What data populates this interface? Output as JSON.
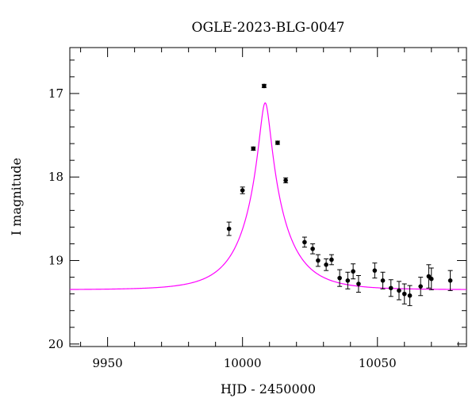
{
  "chart_data": {
    "type": "scatter",
    "title": "OGLE-2023-BLG-0047",
    "xlabel": "HJD - 2450000",
    "ylabel": "I magnitude",
    "xlim": [
      9936,
      10083
    ],
    "ylim": [
      20.03,
      16.45
    ],
    "y_inverted": true,
    "x_major_ticks": [
      9950,
      10000,
      10050
    ],
    "x_tick_labels": [
      "9950",
      "10000",
      "10050"
    ],
    "x_minor_step": 10,
    "y_major_ticks": [
      17,
      18,
      19,
      20
    ],
    "y_tick_labels": [
      "17",
      "18",
      "19",
      "20"
    ],
    "y_minor_step": 0.2,
    "grid": false,
    "points": [
      {
        "x": 9995.0,
        "y": 18.62,
        "err": 0.08
      },
      {
        "x": 10000.0,
        "y": 18.16,
        "err": 0.04
      },
      {
        "x": 10004.0,
        "y": 17.66,
        "err": 0.02
      },
      {
        "x": 10008.0,
        "y": 16.91,
        "err": 0.02
      },
      {
        "x": 10013.0,
        "y": 17.59,
        "err": 0.02
      },
      {
        "x": 10016.0,
        "y": 18.04,
        "err": 0.03
      },
      {
        "x": 10023.0,
        "y": 18.78,
        "err": 0.06
      },
      {
        "x": 10026.0,
        "y": 18.86,
        "err": 0.06
      },
      {
        "x": 10028.0,
        "y": 19.0,
        "err": 0.07
      },
      {
        "x": 10031.0,
        "y": 19.05,
        "err": 0.07
      },
      {
        "x": 10033.0,
        "y": 18.99,
        "err": 0.06
      },
      {
        "x": 10036.0,
        "y": 19.21,
        "err": 0.1
      },
      {
        "x": 10039.0,
        "y": 19.24,
        "err": 0.1
      },
      {
        "x": 10041.0,
        "y": 19.13,
        "err": 0.09
      },
      {
        "x": 10043.0,
        "y": 19.28,
        "err": 0.1
      },
      {
        "x": 10049.0,
        "y": 19.12,
        "err": 0.09
      },
      {
        "x": 10052.0,
        "y": 19.24,
        "err": 0.1
      },
      {
        "x": 10055.0,
        "y": 19.33,
        "err": 0.1
      },
      {
        "x": 10058.0,
        "y": 19.36,
        "err": 0.11
      },
      {
        "x": 10060.0,
        "y": 19.4,
        "err": 0.12
      },
      {
        "x": 10062.0,
        "y": 19.42,
        "err": 0.12
      },
      {
        "x": 10066.0,
        "y": 19.31,
        "err": 0.11
      },
      {
        "x": 10069.0,
        "y": 19.19,
        "err": 0.14
      },
      {
        "x": 10070.0,
        "y": 19.22,
        "err": 0.13
      },
      {
        "x": 10077.0,
        "y": 19.24,
        "err": 0.12
      }
    ],
    "model": {
      "type": "point-lens",
      "t0": 10008.4,
      "u0": 0.128,
      "tE": 15.0,
      "baseline_mag": 19.35,
      "color": "#ff00ff"
    },
    "point_color": "#000000"
  }
}
